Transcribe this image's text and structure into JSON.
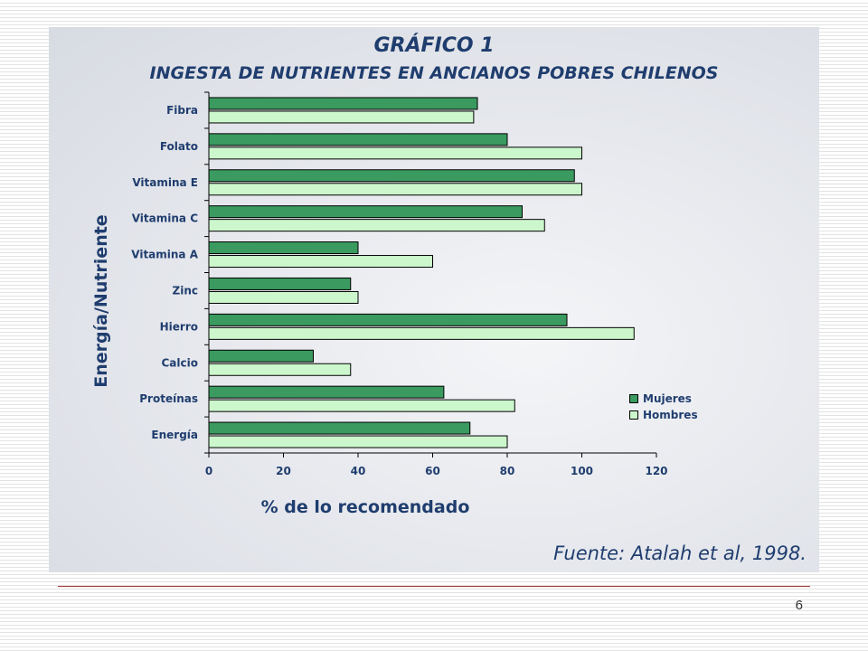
{
  "colors": {
    "mujeres": "#3a9a5f",
    "hombres": "#ccf7cc",
    "text": "#1f3d6e"
  },
  "footer": {
    "page_number": "6"
  },
  "chart_data": {
    "type": "bar",
    "orientation": "horizontal",
    "title": "GRÁFICO 1",
    "subtitle": "INGESTA DE NUTRIENTES EN ANCIANOS POBRES CHILENOS",
    "xlabel": "% de lo recomendado",
    "ylabel": "Energía/Nutriente",
    "xlim": [
      0,
      120
    ],
    "xticks": [
      0,
      20,
      40,
      60,
      80,
      100,
      120
    ],
    "categories": [
      "Fibra",
      "Folato",
      "Vitamina E",
      "Vitamina C",
      "Vitamina A",
      "Zinc",
      "Hierro",
      "Calcio",
      "Proteínas",
      "Energía"
    ],
    "series": [
      {
        "name": "Mujeres",
        "values": [
          72,
          80,
          98,
          84,
          40,
          38,
          96,
          28,
          63,
          70
        ]
      },
      {
        "name": "Hombres",
        "values": [
          71,
          100,
          100,
          90,
          60,
          40,
          114,
          38,
          82,
          80
        ]
      }
    ],
    "legend": "right",
    "grid": false,
    "source": "Fuente: Atalah et al, 1998."
  }
}
